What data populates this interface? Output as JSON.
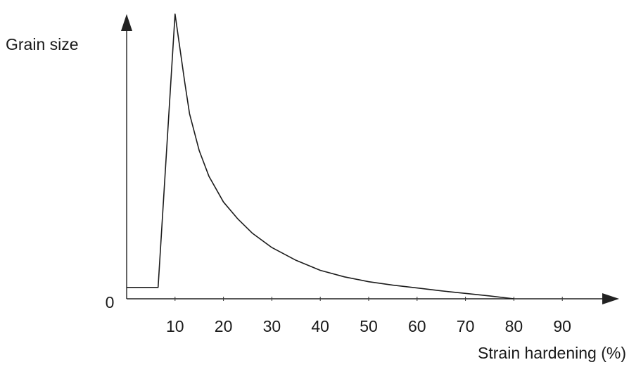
{
  "chart_data": {
    "type": "line",
    "title": "",
    "xlabel": "Strain hardening (%)",
    "ylabel": "Grain size",
    "y_origin_label": "0",
    "xlim": [
      0,
      100
    ],
    "ylim": [
      0,
      100
    ],
    "x_tick_labels": [
      "10",
      "20",
      "30",
      "40",
      "50",
      "60",
      "70",
      "80",
      "90"
    ],
    "x_ticks": [
      10,
      20,
      30,
      40,
      50,
      60,
      70,
      80,
      90
    ],
    "grid": false,
    "series": [
      {
        "x": [
          0,
          6.5,
          10,
          11,
          12,
          13,
          15,
          17,
          20,
          23,
          26,
          30,
          35,
          40,
          45,
          50,
          55,
          60,
          65,
          70,
          75,
          80
        ],
        "y": [
          4,
          4,
          100,
          88,
          76,
          65,
          52,
          43,
          34,
          28,
          23,
          18,
          13.5,
          10,
          7.7,
          6,
          4.8,
          3.8,
          2.8,
          1.9,
          1,
          0
        ]
      }
    ],
    "colors": {
      "line": "#1c1c1c",
      "axes": "#222222"
    }
  }
}
